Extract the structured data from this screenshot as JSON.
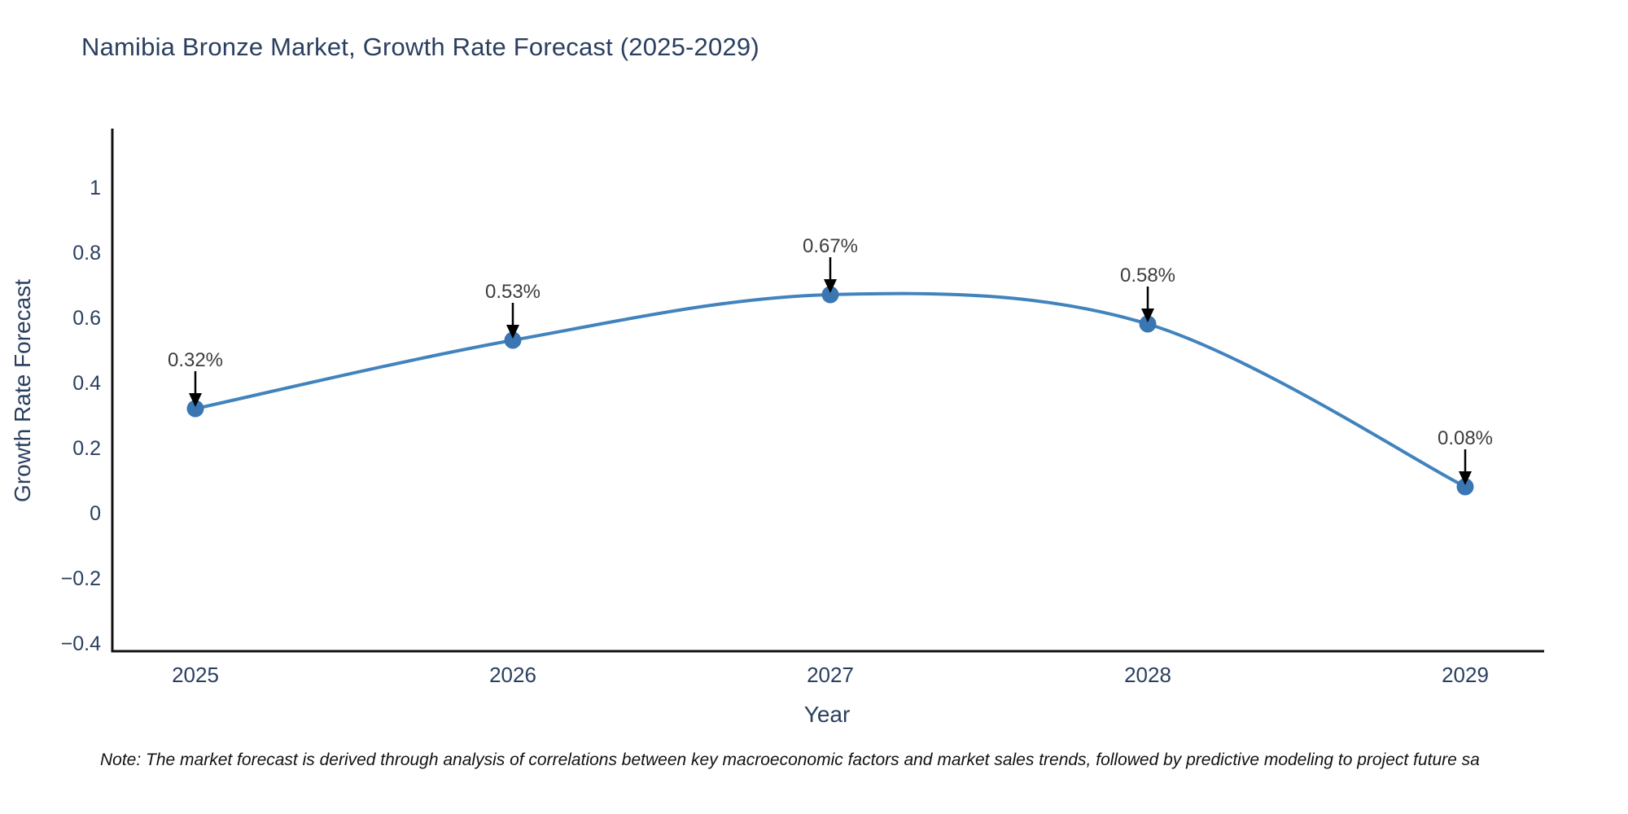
{
  "note": "Note: The market forecast is derived through analysis of correlations between key macroeconomic factors and market sales trends, followed by predictive modeling to project future sa",
  "chart_data": {
    "type": "line",
    "line_shape": "spline",
    "title": "Namibia Bronze Market, Growth Rate Forecast (2025-2029)",
    "xlabel": "Year",
    "ylabel": "Growth Rate Forecast",
    "categories": [
      "2025",
      "2026",
      "2027",
      "2028",
      "2029"
    ],
    "values": [
      0.32,
      0.53,
      0.67,
      0.58,
      0.08
    ],
    "point_labels": [
      "0.32%",
      "0.53%",
      "0.67%",
      "0.58%",
      "0.08%"
    ],
    "ytick_values": [
      1,
      0.8,
      0.6,
      0.4,
      0.2,
      0,
      -0.2,
      -0.4
    ],
    "ytick_labels": [
      "1",
      "0.8",
      "0.6",
      "0.4",
      "0.2",
      "0",
      "−0.2",
      "−0.4"
    ],
    "ylim": [
      -0.43,
      1.18
    ],
    "grid": false,
    "legend": "none",
    "annotation_style": "value label above point with downward black arrow",
    "colors": {
      "line": "#4183bd",
      "marker": "#3a76b2",
      "axis": "#111111",
      "tick_text": "#2a3f5f",
      "title_text": "#2a3f5f",
      "annotation_text": "#3d3d3d",
      "arrow": "#000000",
      "background": "#ffffff"
    }
  }
}
